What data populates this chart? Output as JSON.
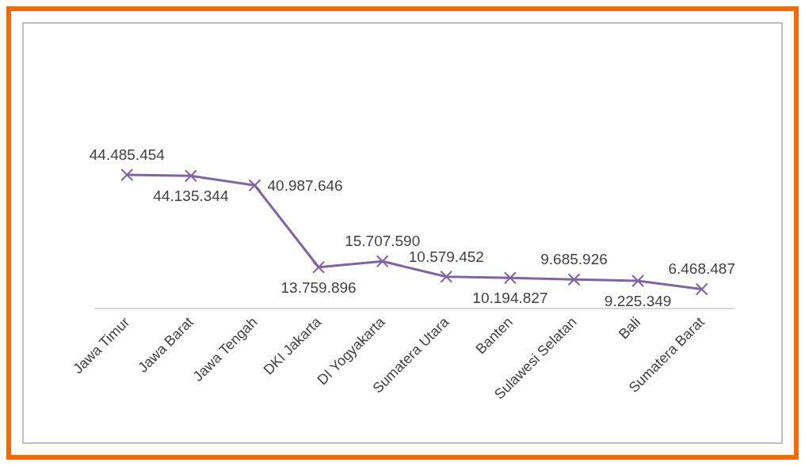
{
  "chart_data": {
    "type": "line",
    "categories": [
      "Jawa Timur",
      "Jawa Barat",
      "Jawa Tengah",
      "DKI Jakarta",
      "DI Yogyakarta",
      "Sumatera Utara",
      "Banten",
      "Sulawesi Selatan",
      "Bali",
      "Sumatera Barat"
    ],
    "series": [
      {
        "color": "#8064a2",
        "values": [
          44485454,
          44135344,
          40987646,
          13759896,
          15707590,
          10579452,
          10194827,
          9685926,
          9225349,
          6468487
        ],
        "value_labels": [
          "44.485.454",
          "44.135.344",
          "40.987.646",
          "13.759.896",
          "15.707.590",
          "10.579.452",
          "10.194.827",
          "9.685.926",
          "9.225.349",
          "6.468.487"
        ]
      }
    ],
    "marker": "cross",
    "grid": false
  }
}
